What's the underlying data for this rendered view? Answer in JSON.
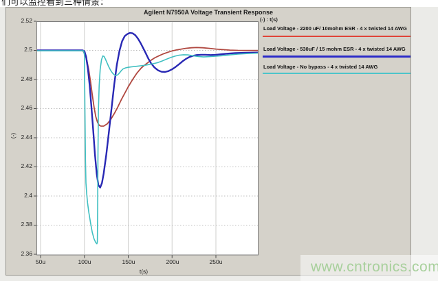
{
  "page": {
    "top_caption": "们可以监控看到三种情景：",
    "watermark": "www.cntronics.com",
    "colors": {
      "panel_bg": "#d5d2ca",
      "page_bg": "#ebebe8",
      "watermark": "#a8d09c"
    }
  },
  "chart": {
    "title": "Agilent N7950A Voltage Transient Response",
    "axis_note": "(-) : t(s)",
    "xlabel": "t(s)",
    "ylabel": "(-)",
    "y_ticks": [
      "2.52",
      "2.5",
      "2.48",
      "2.46",
      "2.44",
      "2.42",
      "2.4",
      "2.38",
      "2.36"
    ],
    "x_ticks": [
      "50u",
      "100u",
      "150u",
      "200u",
      "250u"
    ],
    "legend": [
      {
        "label": "Load Voltage - 2200 uF/ 10mohm ESR - 4 x twisted 14 AWG",
        "color": "#e04438"
      },
      {
        "label": "Load Voltage - 530uF / 15 mohm ESR - 4 x twisted 14 AWG",
        "color": "#2a2ac8"
      },
      {
        "label": "Load Voltage - No bypass - 4 x twisted 14 AWG",
        "color": "#4cc4ca"
      }
    ]
  },
  "chart_data": {
    "type": "line",
    "title": "Agilent N7950A Voltage Transient Response",
    "xlabel": "t(s)",
    "ylabel": "(-)",
    "x_unit": "microseconds",
    "xlim_us": [
      45,
      298
    ],
    "ylim": [
      2.36,
      2.52
    ],
    "x_ticks_us": [
      50,
      100,
      150,
      200,
      250
    ],
    "y_ticks_v": [
      2.52,
      2.5,
      2.48,
      2.46,
      2.44,
      2.42,
      2.4,
      2.38,
      2.36
    ],
    "grid": true,
    "legend_position": "right",
    "series": [
      {
        "name": "Load Voltage - 2200 uF/ 10mohm ESR - 4 x twisted 14 AWG",
        "color": "#b04840",
        "stroke_width": 1.8,
        "points": [
          [
            45,
            2.5
          ],
          [
            98,
            2.5
          ],
          [
            101,
            2.497
          ],
          [
            103,
            2.4925
          ],
          [
            105,
            2.4865
          ],
          [
            107,
            2.4785
          ],
          [
            109,
            2.4695
          ],
          [
            111,
            2.461
          ],
          [
            113,
            2.4545
          ],
          [
            115,
            2.4505
          ],
          [
            117,
            2.4485
          ],
          [
            119,
            2.448
          ],
          [
            122,
            2.448
          ],
          [
            126,
            2.4495
          ],
          [
            130,
            2.4525
          ],
          [
            134,
            2.4565
          ],
          [
            138,
            2.461
          ],
          [
            142,
            2.466
          ],
          [
            146,
            2.4705
          ],
          [
            150,
            2.475
          ],
          [
            155,
            2.48
          ],
          [
            160,
            2.4845
          ],
          [
            165,
            2.488
          ],
          [
            170,
            2.4905
          ],
          [
            175,
            2.4928
          ],
          [
            180,
            2.4948
          ],
          [
            185,
            2.4963
          ],
          [
            190,
            2.4976
          ],
          [
            195,
            2.4987
          ],
          [
            200,
            2.4996
          ],
          [
            205,
            2.5003
          ],
          [
            210,
            2.5008
          ],
          [
            216,
            2.5014
          ],
          [
            222,
            2.5018
          ],
          [
            228,
            2.502
          ],
          [
            235,
            2.5018
          ],
          [
            242,
            2.5014
          ],
          [
            250,
            2.5009
          ],
          [
            258,
            2.5005
          ],
          [
            266,
            2.5002
          ],
          [
            275,
            2.5
          ],
          [
            298,
            2.4999
          ]
        ]
      },
      {
        "name": "Load Voltage - 530uF / 15 mohm ESR - 4 x twisted 14 AWG",
        "color": "#2828b4",
        "stroke_width": 2.4,
        "points": [
          [
            45,
            2.5
          ],
          [
            98,
            2.5
          ],
          [
            100,
            2.4995
          ],
          [
            102,
            2.4955
          ],
          [
            104,
            2.4875
          ],
          [
            106,
            2.476
          ],
          [
            108,
            2.4615
          ],
          [
            110,
            2.4455
          ],
          [
            112,
            2.429
          ],
          [
            114,
            2.4155
          ],
          [
            116,
            2.4075
          ],
          [
            118,
            2.4058
          ],
          [
            120,
            2.409
          ],
          [
            122,
            2.4155
          ],
          [
            125,
            2.4285
          ],
          [
            128,
            2.444
          ],
          [
            131,
            2.4605
          ],
          [
            134,
            2.4765
          ],
          [
            137,
            2.49
          ],
          [
            140,
            2.4998
          ],
          [
            143,
            2.5063
          ],
          [
            146,
            2.5098
          ],
          [
            149,
            2.5112
          ],
          [
            152,
            2.512
          ],
          [
            155,
            2.5117
          ],
          [
            158,
            2.5105
          ],
          [
            161,
            2.5082
          ],
          [
            164,
            2.5052
          ],
          [
            167,
            2.5016
          ],
          [
            170,
            2.498
          ],
          [
            173,
            2.4943
          ],
          [
            176,
            2.4912
          ],
          [
            180,
            2.4882
          ],
          [
            184,
            2.4863
          ],
          [
            188,
            2.4853
          ],
          [
            192,
            2.4852
          ],
          [
            196,
            2.4858
          ],
          [
            200,
            2.487
          ],
          [
            204,
            2.4886
          ],
          [
            208,
            2.4905
          ],
          [
            212,
            2.4925
          ],
          [
            216,
            2.4942
          ],
          [
            220,
            2.4955
          ],
          [
            224,
            2.4963
          ],
          [
            228,
            2.4968
          ],
          [
            233,
            2.497
          ],
          [
            238,
            2.497
          ],
          [
            244,
            2.4968
          ],
          [
            250,
            2.497
          ],
          [
            257,
            2.4974
          ],
          [
            264,
            2.4978
          ],
          [
            272,
            2.4981
          ],
          [
            282,
            2.4983
          ],
          [
            298,
            2.4985
          ]
        ]
      },
      {
        "name": "Load Voltage - No bypass - 4 x twisted 14 AWG",
        "color": "#3fbfc1",
        "stroke_width": 1.6,
        "points": [
          [
            45,
            2.4997
          ],
          [
            99,
            2.4997
          ],
          [
            100,
            2.497
          ],
          [
            100.6,
            2.46
          ],
          [
            101.2,
            2.425
          ],
          [
            101.8,
            2.409
          ],
          [
            102.6,
            2.4015
          ],
          [
            103.6,
            2.3955
          ],
          [
            105,
            2.389
          ],
          [
            107,
            2.3815
          ],
          [
            109,
            2.375
          ],
          [
            111,
            2.3705
          ],
          [
            113,
            2.368
          ],
          [
            114.2,
            2.3672
          ],
          [
            114.8,
            2.3685
          ],
          [
            115.1,
            2.39
          ],
          [
            115.5,
            2.43
          ],
          [
            116,
            2.458
          ],
          [
            116.8,
            2.4755
          ],
          [
            118,
            2.487
          ],
          [
            119.5,
            2.4935
          ],
          [
            121,
            2.4962
          ],
          [
            122.5,
            2.4958
          ],
          [
            124,
            2.494
          ],
          [
            126,
            2.4912
          ],
          [
            128,
            2.4885
          ],
          [
            130,
            2.4862
          ],
          [
            132,
            2.4845
          ],
          [
            134,
            2.4832
          ],
          [
            136,
            2.4827
          ],
          [
            138,
            2.4832
          ],
          [
            140,
            2.4845
          ],
          [
            142,
            2.486
          ],
          [
            144,
            2.4872
          ],
          [
            147,
            2.488
          ],
          [
            150,
            2.4884
          ],
          [
            154,
            2.4887
          ],
          [
            158,
            2.489
          ],
          [
            163,
            2.4893
          ],
          [
            168,
            2.4897
          ],
          [
            173,
            2.4902
          ],
          [
            178,
            2.4908
          ],
          [
            183,
            2.4915
          ],
          [
            188,
            2.4925
          ],
          [
            193,
            2.4938
          ],
          [
            198,
            2.495
          ],
          [
            203,
            2.496
          ],
          [
            208,
            2.4967
          ],
          [
            213,
            2.497
          ],
          [
            218,
            2.4969
          ],
          [
            224,
            2.4963
          ],
          [
            230,
            2.4958
          ],
          [
            236,
            2.4955
          ],
          [
            243,
            2.4957
          ],
          [
            250,
            2.496
          ],
          [
            258,
            2.4964
          ],
          [
            266,
            2.4969
          ],
          [
            275,
            2.4974
          ],
          [
            285,
            2.4978
          ],
          [
            298,
            2.4981
          ]
        ]
      }
    ]
  }
}
